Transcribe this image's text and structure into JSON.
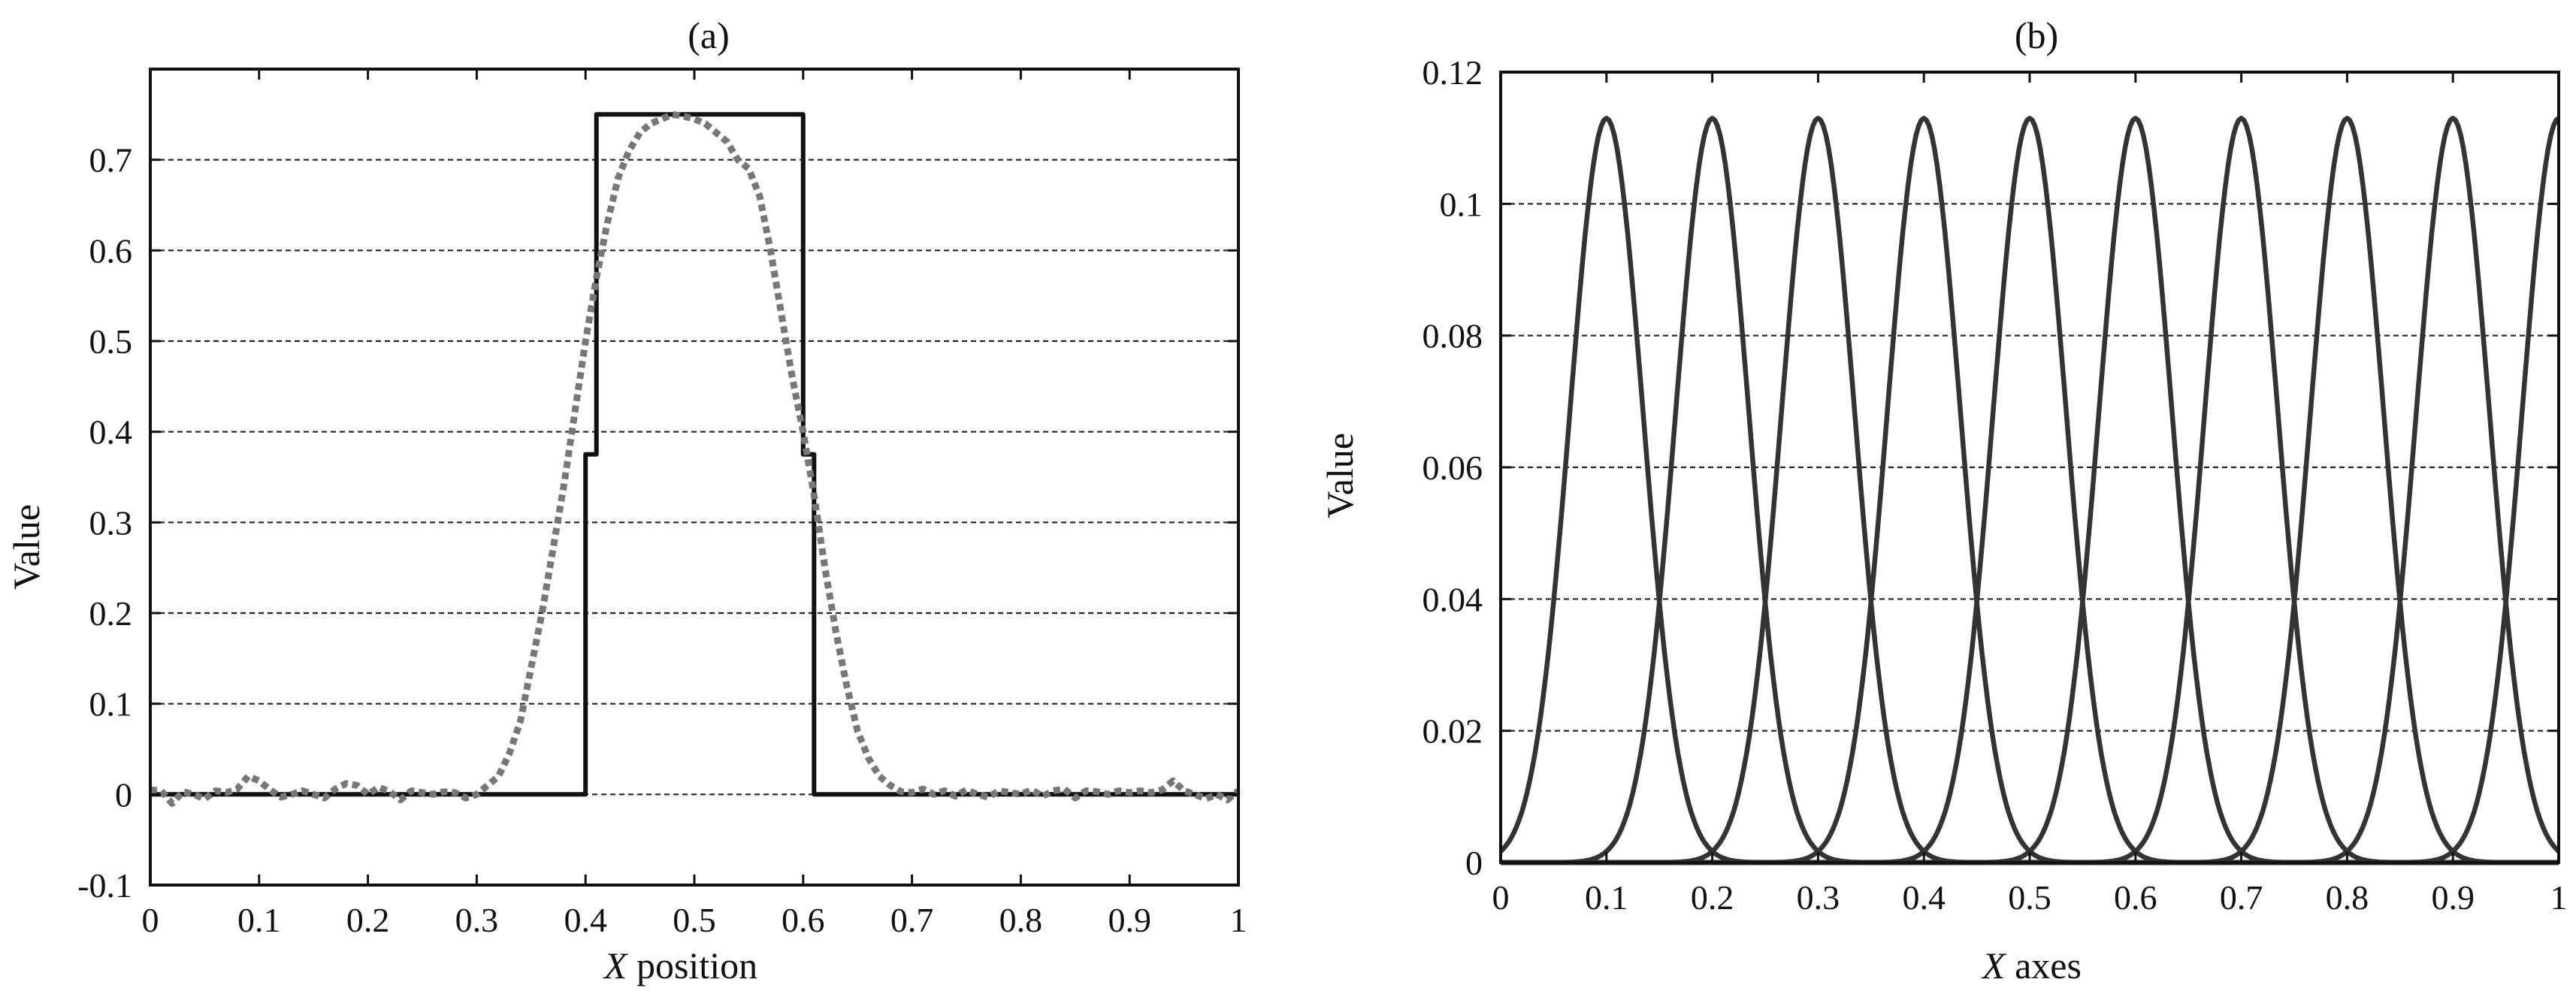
{
  "chart_data": [
    {
      "type": "line",
      "title": "(a)",
      "xlabel_var": "X",
      "xlabel_rest": " position",
      "ylabel": "Value",
      "xlim": [
        0,
        1
      ],
      "ylim": [
        -0.1,
        0.8
      ],
      "xticks": [
        0,
        0.1,
        0.2,
        0.3,
        0.4,
        0.5,
        0.6,
        0.7,
        0.8,
        0.9,
        1
      ],
      "xtick_labels": [
        "0",
        "0.1",
        "0.2",
        "0.3",
        "0.4",
        "0.5",
        "0.6",
        "0.7",
        "0.8",
        "0.9",
        "1"
      ],
      "yticks": [
        -0.1,
        0,
        0.1,
        0.2,
        0.3,
        0.4,
        0.5,
        0.6,
        0.7
      ],
      "ytick_labels": [
        "-0.1",
        "0",
        "0.1",
        "0.2",
        "0.3",
        "0.4",
        "0.5",
        "0.6",
        "0.7"
      ],
      "grid": "horizontal-dashed",
      "series": [
        {
          "style": "solid",
          "color": "#111111",
          "x": [
            0,
            0.4,
            0.4,
            0.41,
            0.41,
            0.6,
            0.6,
            0.61,
            0.61,
            1.0
          ],
          "y": [
            0,
            0,
            0.375,
            0.375,
            0.75,
            0.75,
            0.375,
            0.375,
            0,
            0
          ]
        },
        {
          "style": "dotted",
          "color": "#777777",
          "x": [
            0,
            0.01,
            0.02,
            0.03,
            0.04,
            0.05,
            0.06,
            0.07,
            0.08,
            0.09,
            0.1,
            0.11,
            0.12,
            0.13,
            0.14,
            0.15,
            0.16,
            0.17,
            0.18,
            0.19,
            0.2,
            0.21,
            0.22,
            0.23,
            0.24,
            0.25,
            0.26,
            0.27,
            0.28,
            0.29,
            0.3,
            0.31,
            0.32,
            0.33,
            0.34,
            0.35,
            0.36,
            0.37,
            0.38,
            0.39,
            0.4,
            0.41,
            0.42,
            0.43,
            0.44,
            0.45,
            0.46,
            0.47,
            0.48,
            0.49,
            0.5,
            0.51,
            0.52,
            0.53,
            0.54,
            0.55,
            0.56,
            0.57,
            0.58,
            0.59,
            0.6,
            0.61,
            0.62,
            0.63,
            0.64,
            0.65,
            0.66,
            0.67,
            0.68,
            0.69,
            0.7,
            0.71,
            0.72,
            0.73,
            0.74,
            0.75,
            0.76,
            0.77,
            0.78,
            0.79,
            0.8,
            0.81,
            0.82,
            0.83,
            0.84,
            0.85,
            0.86,
            0.87,
            0.88,
            0.89,
            0.9,
            0.91,
            0.92,
            0.93,
            0.94,
            0.95,
            0.96,
            0.97,
            0.98,
            0.99,
            1.0
          ],
          "y": [
            0.005,
            0.004,
            -0.01,
            0.003,
            0.0,
            -0.005,
            0.004,
            0.002,
            0.006,
            0.02,
            0.015,
            0.005,
            -0.003,
            0.0,
            0.004,
            0.0,
            -0.004,
            0.006,
            0.012,
            0.01,
            0.0,
            0.008,
            0.003,
            -0.006,
            0.004,
            0.002,
            0.0,
            0.003,
            0.002,
            -0.004,
            0.0,
            0.01,
            0.02,
            0.045,
            0.08,
            0.14,
            0.2,
            0.27,
            0.34,
            0.42,
            0.5,
            0.57,
            0.63,
            0.68,
            0.71,
            0.73,
            0.74,
            0.745,
            0.75,
            0.748,
            0.745,
            0.74,
            0.73,
            0.72,
            0.7,
            0.69,
            0.66,
            0.6,
            0.53,
            0.46,
            0.4,
            0.33,
            0.25,
            0.18,
            0.12,
            0.07,
            0.04,
            0.02,
            0.01,
            0.003,
            0.002,
            0.006,
            0.0,
            0.004,
            -0.002,
            0.005,
            0.0,
            -0.003,
            0.004,
            0.002,
            0.0,
            0.005,
            -0.002,
            0.004,
            0.006,
            -0.004,
            0.004,
            0.003,
            0.0,
            0.004,
            0.002,
            0.004,
            0.002,
            0.005,
            0.015,
            0.004,
            0.0,
            -0.005,
            0.0,
            -0.006,
            0.004
          ]
        }
      ]
    },
    {
      "type": "line",
      "title": "(b)",
      "xlabel_var": "X",
      "xlabel_rest": " axes",
      "ylabel": "Value",
      "xlim": [
        0,
        1
      ],
      "ylim": [
        0,
        0.12
      ],
      "xticks": [
        0,
        0.1,
        0.2,
        0.3,
        0.4,
        0.5,
        0.6,
        0.7,
        0.8,
        0.9,
        1
      ],
      "xtick_labels": [
        "0",
        "0.1",
        "0.2",
        "0.3",
        "0.4",
        "0.5",
        "0.6",
        "0.7",
        "0.8",
        "0.9",
        "1"
      ],
      "yticks": [
        0,
        0.02,
        0.04,
        0.06,
        0.08,
        0.1,
        0.12
      ],
      "ytick_labels": [
        "0",
        "0.02",
        "0.04",
        "0.06",
        "0.08",
        "0.1",
        "0.12"
      ],
      "grid": "horizontal-dashed",
      "curve_family": "gaussian",
      "peak_value": 0.113,
      "sigma": 0.0345,
      "curve_count": 10,
      "series": [
        {
          "center": 0.1,
          "style": "solid",
          "color": "#333333"
        },
        {
          "center": 0.2,
          "style": "solid",
          "color": "#333333"
        },
        {
          "center": 0.3,
          "style": "solid",
          "color": "#333333"
        },
        {
          "center": 0.4,
          "style": "solid",
          "color": "#333333"
        },
        {
          "center": 0.5,
          "style": "solid",
          "color": "#333333"
        },
        {
          "center": 0.6,
          "style": "solid",
          "color": "#333333"
        },
        {
          "center": 0.7,
          "style": "solid",
          "color": "#333333"
        },
        {
          "center": 0.8,
          "style": "solid",
          "color": "#333333"
        },
        {
          "center": 0.9,
          "style": "solid",
          "color": "#333333"
        },
        {
          "center": 1.0,
          "style": "solid",
          "color": "#333333"
        }
      ]
    }
  ]
}
